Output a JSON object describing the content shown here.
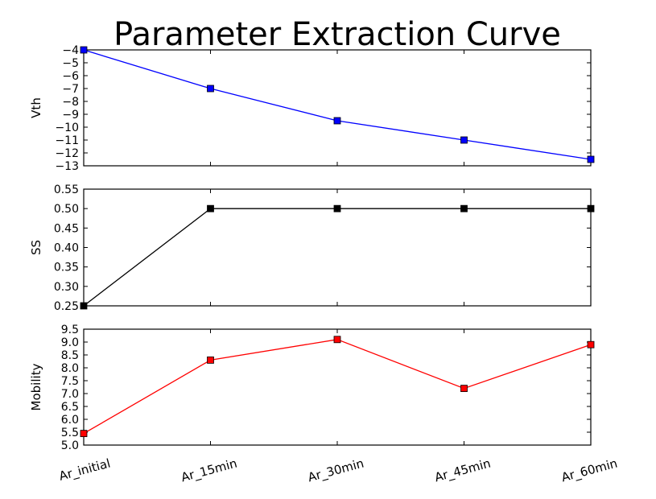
{
  "chart_data": {
    "type": "line",
    "title": "Parameter Extraction Curve",
    "categories": [
      "Ar_initial",
      "Ar_15min",
      "Ar_30min",
      "Ar_45min",
      "Ar_60min"
    ],
    "grid": false,
    "subplots": [
      {
        "ylabel": "Vth",
        "ylim": [
          -13,
          -4
        ],
        "yticks": [
          -4,
          -5,
          -6,
          -7,
          -8,
          -9,
          -10,
          -11,
          -12,
          -13
        ],
        "ytick_labels": [
          "−4",
          "−5",
          "−6",
          "−7",
          "−8",
          "−9",
          "−10",
          "−11",
          "−12",
          "−13"
        ],
        "color": "#0000ff",
        "marker": "square",
        "values": [
          -4.0,
          -7.0,
          -9.5,
          -11.0,
          -12.5
        ]
      },
      {
        "ylabel": "SS",
        "ylim": [
          0.25,
          0.55
        ],
        "yticks": [
          0.25,
          0.3,
          0.35,
          0.4,
          0.45,
          0.5,
          0.55
        ],
        "ytick_labels": [
          "0.25",
          "0.30",
          "0.35",
          "0.40",
          "0.45",
          "0.50",
          "0.55"
        ],
        "color": "#000000",
        "marker": "square",
        "values": [
          0.25,
          0.5,
          0.5,
          0.5,
          0.5
        ]
      },
      {
        "ylabel": "Mobility",
        "ylim": [
          5.0,
          9.5
        ],
        "yticks": [
          5.0,
          5.5,
          6.0,
          6.5,
          7.0,
          7.5,
          8.0,
          8.5,
          9.0,
          9.5
        ],
        "ytick_labels": [
          "5.0",
          "5.5",
          "6.0",
          "6.5",
          "7.0",
          "7.5",
          "8.0",
          "8.5",
          "9.0",
          "9.5"
        ],
        "color": "#ff0000",
        "marker": "square",
        "values": [
          5.45,
          8.3,
          9.1,
          7.2,
          8.9
        ]
      }
    ]
  }
}
